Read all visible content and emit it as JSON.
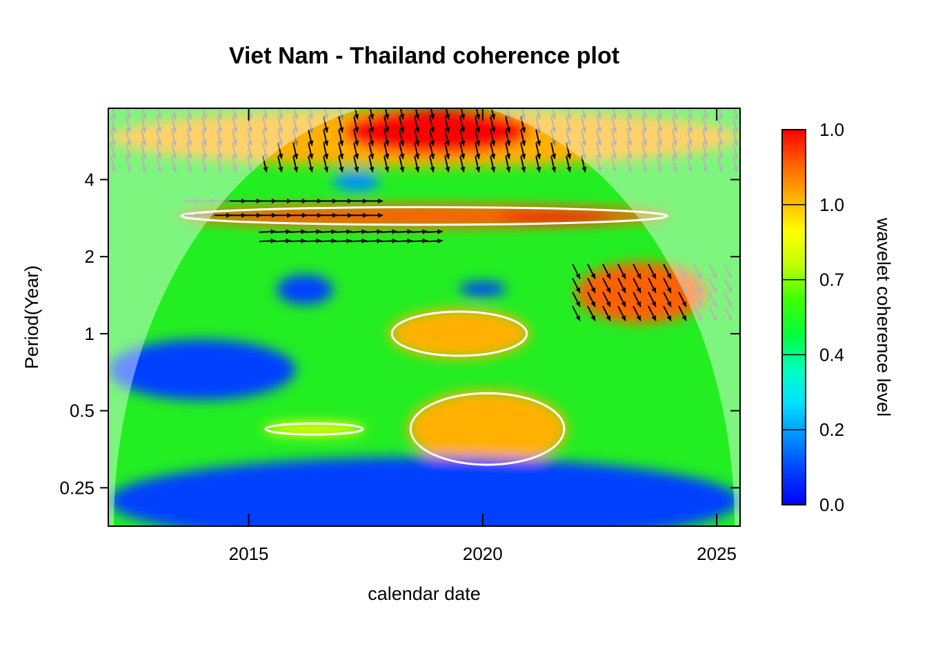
{
  "chart_data": {
    "type": "heatmap",
    "title": "Viet Nam - Thailand coherence plot",
    "xlabel": "calendar date",
    "ylabel": "Period(Year)",
    "colorbar_label": "wavelet coherence level",
    "x_ticks": [
      "2015",
      "2020",
      "2025"
    ],
    "x_tick_values": [
      2015,
      2020,
      2025
    ],
    "y_ticks": [
      "0.25",
      "0.5",
      "1",
      "2",
      "4"
    ],
    "y_tick_values": [
      0.25,
      0.5,
      1,
      2,
      4
    ],
    "colorbar_ticks": [
      "0.0",
      "0.2",
      "0.4",
      "0.7",
      "1.0",
      "1.0"
    ],
    "colorbar_tick_values": [
      0.0,
      0.2,
      0.4,
      0.7,
      1.0,
      1.0
    ],
    "xlim": [
      2012,
      2025.5
    ],
    "ylim_period_log2": [
      0.177,
      7.6
    ],
    "y_scale": "log2",
    "palette": [
      "#0000ff",
      "#0040ff",
      "#00c0ff",
      "#00ffc0",
      "#00ff40",
      "#40ff00",
      "#c0ff00",
      "#ffff00",
      "#ffc000",
      "#ff8000",
      "#ff4000",
      "#ff0000"
    ],
    "cone_of_influence": "shaded outside",
    "significance_contour_color": "#ffffff",
    "arrows": "phase arrows (black inside cone, grey outside)",
    "coherence_regions": [
      {
        "x": [
          2012,
          2025.5
        ],
        "period": [
          4.5,
          7.6
        ],
        "coherence": 0.85
      },
      {
        "x": [
          2017,
          2021
        ],
        "period": [
          5,
          7.6
        ],
        "coherence": 0.97
      },
      {
        "x": [
          2013.5,
          2024
        ],
        "period": [
          2.6,
          3.2
        ],
        "coherence": 0.88
      },
      {
        "x": [
          2020.3,
          2022.8
        ],
        "period": [
          2.7,
          3.0
        ],
        "coherence": 0.98
      },
      {
        "x": [
          2022,
          2024.8
        ],
        "period": [
          1.1,
          1.9
        ],
        "coherence": 0.95
      },
      {
        "x": [
          2018,
          2021
        ],
        "period": [
          0.8,
          1.25
        ],
        "coherence": 0.82
      },
      {
        "x": [
          2018.4,
          2021.8
        ],
        "period": [
          0.3,
          0.6
        ],
        "coherence": 0.8
      },
      {
        "x": [
          2015.3,
          2017.5
        ],
        "period": [
          0.4,
          0.45
        ],
        "coherence": 0.75
      },
      {
        "x": [
          2012,
          2016
        ],
        "period": [
          0.55,
          0.95
        ],
        "coherence": 0.08
      },
      {
        "x": [
          2012,
          2025.5
        ],
        "period": [
          0.15,
          0.33
        ],
        "coherence": 0.08
      },
      {
        "x": [
          2015.6,
          2016.8
        ],
        "period": [
          1.3,
          1.7
        ],
        "coherence": 0.1
      },
      {
        "x": [
          2019.5,
          2020.5
        ],
        "period": [
          1.4,
          1.6
        ],
        "coherence": 0.12
      },
      {
        "x": [
          2016.8,
          2017.8
        ],
        "period": [
          3.6,
          4.3
        ],
        "coherence": 0.15
      }
    ]
  }
}
